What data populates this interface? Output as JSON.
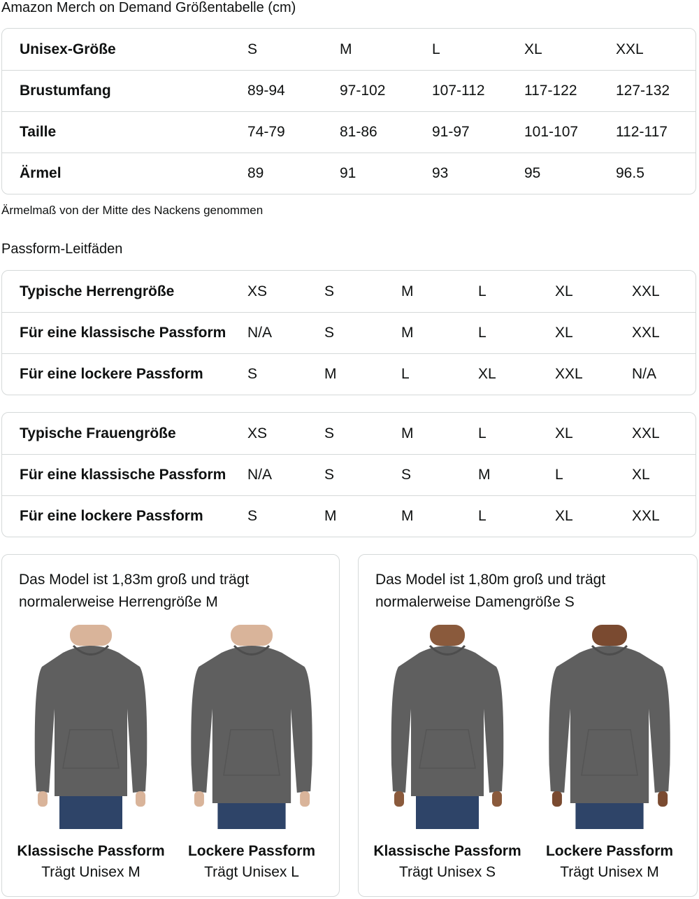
{
  "title": "Amazon Merch on Demand Größentabelle (cm)",
  "size_table": {
    "rows": [
      {
        "label": "Unisex-Größe",
        "values": [
          "S",
          "M",
          "L",
          "XL",
          "XXL"
        ]
      },
      {
        "label": "Brustumfang",
        "values": [
          "89-94",
          "97-102",
          "107-112",
          "117-122",
          "127-132"
        ]
      },
      {
        "label": "Taille",
        "values": [
          "74-79",
          "81-86",
          "91-97",
          "101-107",
          "112-117"
        ]
      },
      {
        "label": "Ärmel",
        "values": [
          "89",
          "91",
          "93",
          "95",
          "96.5"
        ]
      }
    ]
  },
  "sleeve_note": "Ärmelmaß von der Mitte des Nackens genommen",
  "fit_heading": "Passform-Leitfäden",
  "men_fit_table": {
    "rows": [
      {
        "label": "Typische Herrengröße",
        "values": [
          "XS",
          "S",
          "M",
          "L",
          "XL",
          "XXL"
        ]
      },
      {
        "label": "Für eine klassische Passform",
        "values": [
          "N/A",
          "S",
          "M",
          "L",
          "XL",
          "XXL"
        ]
      },
      {
        "label": "Für eine lockere Passform",
        "values": [
          "S",
          "M",
          "L",
          "XL",
          "XXL",
          "N/A"
        ]
      }
    ]
  },
  "women_fit_table": {
    "rows": [
      {
        "label": "Typische Frauengröße",
        "values": [
          "XS",
          "S",
          "M",
          "L",
          "XL",
          "XXL"
        ]
      },
      {
        "label": "Für eine klassische Passform",
        "values": [
          "N/A",
          "S",
          "S",
          "M",
          "L",
          "XL"
        ]
      },
      {
        "label": "Für eine lockere Passform",
        "values": [
          "S",
          "M",
          "M",
          "L",
          "XL",
          "XXL"
        ]
      }
    ]
  },
  "model_cards": [
    {
      "desc_line1": "Das Model ist 1,83m groß und trägt",
      "desc_line2": "normalerweise Herrengröße M",
      "figures": [
        {
          "title": "Klassische Passform",
          "subtitle": "Trägt Unisex M"
        },
        {
          "title": "Lockere Passform",
          "subtitle": "Trägt Unisex L"
        }
      ]
    },
    {
      "desc_line1": "Das Model ist 1,80m groß und trägt",
      "desc_line2": "normalerweise Damengröße S",
      "figures": [
        {
          "title": "Klassische Passform",
          "subtitle": "Trägt Unisex S"
        },
        {
          "title": "Lockere Passform",
          "subtitle": "Trägt Unisex M"
        }
      ]
    }
  ],
  "colors": {
    "hoodie": "#5f5f5f",
    "jeans": "#2e4468",
    "border": "#d5d9d9"
  }
}
